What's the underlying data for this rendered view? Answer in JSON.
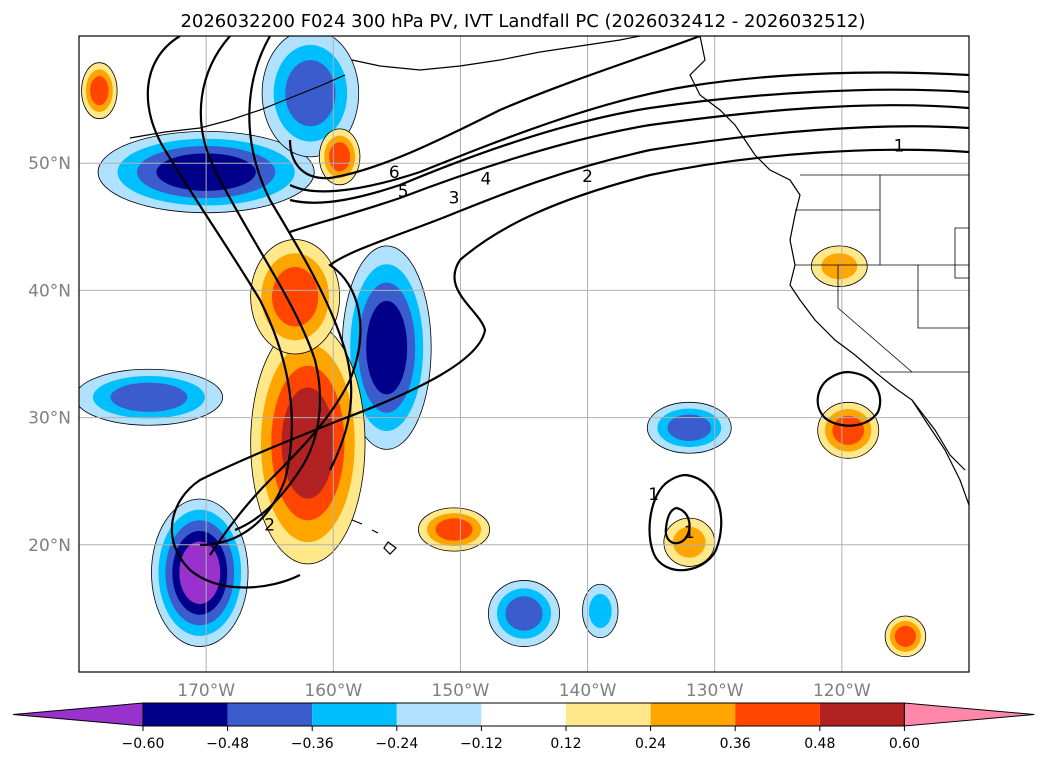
{
  "chart_data": {
    "type": "map-contour",
    "title": "2026032200 F024 300 hPa PV, IVT Landfall PC (2026032412 - 2026032512)",
    "lon_range": [
      -180,
      -110
    ],
    "lat_range": [
      10,
      60
    ],
    "x_ticks": [
      {
        "lon": -170,
        "label": "170°W"
      },
      {
        "lon": -160,
        "label": "160°W"
      },
      {
        "lon": -150,
        "label": "150°W"
      },
      {
        "lon": -140,
        "label": "140°W"
      },
      {
        "lon": -130,
        "label": "130°W"
      },
      {
        "lon": -120,
        "label": "120°W"
      }
    ],
    "y_ticks": [
      {
        "lat": 20,
        "label": "20°N"
      },
      {
        "lat": 30,
        "label": "30°N"
      },
      {
        "lat": 40,
        "label": "40°N"
      },
      {
        "lat": 50,
        "label": "50°N"
      }
    ],
    "colorbar": {
      "levels": [
        "-0.60",
        "-0.48",
        "-0.36",
        "-0.24",
        "-0.12",
        "0.12",
        "0.24",
        "0.36",
        "0.48",
        "0.60"
      ],
      "level_values": [
        -0.6,
        -0.48,
        -0.36,
        -0.24,
        -0.12,
        0.12,
        0.24,
        0.36,
        0.48,
        0.6
      ],
      "colors": [
        "#9932cc",
        "#00008b",
        "#3a5ccc",
        "#00bfff",
        "#b0e2ff",
        "#ffffff",
        "#ffe88a",
        "#ffa500",
        "#ff4500",
        "#b22222",
        "#ff88aa"
      ],
      "extend": "both"
    },
    "pv_contour_levels": [
      {
        "value": 1,
        "label": "1"
      },
      {
        "value": 2,
        "label": "2"
      },
      {
        "value": 3,
        "label": "3"
      },
      {
        "value": 4,
        "label": "4"
      },
      {
        "value": 5,
        "label": "5"
      },
      {
        "value": 6,
        "label": "6"
      }
    ],
    "pv_contour_labels": [
      {
        "text": "1",
        "lon": -115.5,
        "lat": 51.4
      },
      {
        "text": "2",
        "lon": -140.0,
        "lat": 49.0
      },
      {
        "text": "3",
        "lon": -150.5,
        "lat": 47.3
      },
      {
        "text": "4",
        "lon": -148.0,
        "lat": 48.8
      },
      {
        "text": "5",
        "lon": -154.5,
        "lat": 47.8
      },
      {
        "text": "6",
        "lon": -155.2,
        "lat": 49.3
      },
      {
        "text": "2",
        "lon": -165.0,
        "lat": 21.6
      },
      {
        "text": "1",
        "lon": -134.8,
        "lat": 24.0
      },
      {
        "text": "1",
        "lon": -132.0,
        "lat": 21.0
      }
    ],
    "pc_field_blobs": [
      {
        "lon": -170,
        "lat": 49.3,
        "rx": 8.5,
        "ry": 3.2,
        "level": "-0.48"
      },
      {
        "lon": -161.8,
        "lat": 55.5,
        "rx": 3.8,
        "ry": 5.0,
        "level": "-0.36"
      },
      {
        "lon": -155.8,
        "lat": 35.5,
        "rx": 3.5,
        "ry": 8.0,
        "level": "-0.48"
      },
      {
        "lon": -170.5,
        "lat": 17.8,
        "rx": 3.8,
        "ry": 5.8,
        "level": "-0.60"
      },
      {
        "lon": -174.5,
        "lat": 31.6,
        "rx": 5.8,
        "ry": 2.2,
        "level": "-0.36"
      },
      {
        "lon": -132.0,
        "lat": 29.2,
        "rx": 3.3,
        "ry": 2.0,
        "level": "-0.36"
      },
      {
        "lon": -145.0,
        "lat": 14.6,
        "rx": 2.8,
        "ry": 2.6,
        "level": "-0.36"
      },
      {
        "lon": -139.0,
        "lat": 14.8,
        "rx": 1.4,
        "ry": 2.1,
        "level": "-0.24"
      },
      {
        "lon": -162.0,
        "lat": 28.0,
        "rx": 4.5,
        "ry": 9.5,
        "level": "0.48"
      },
      {
        "lon": -163.0,
        "lat": 39.5,
        "rx": 3.5,
        "ry": 4.5,
        "level": "0.36"
      },
      {
        "lon": -159.5,
        "lat": 50.5,
        "rx": 1.6,
        "ry": 2.2,
        "level": "0.36"
      },
      {
        "lon": -120.2,
        "lat": 41.9,
        "rx": 2.2,
        "ry": 1.6,
        "level": "0.24"
      },
      {
        "lon": -119.5,
        "lat": 29.0,
        "rx": 2.4,
        "ry": 2.2,
        "level": "0.36"
      },
      {
        "lon": -178.4,
        "lat": 55.7,
        "rx": 1.4,
        "ry": 2.2,
        "level": "0.36"
      },
      {
        "lon": -150.5,
        "lat": 21.2,
        "rx": 2.8,
        "ry": 1.7,
        "level": "0.36"
      },
      {
        "lon": -132.0,
        "lat": 20.2,
        "rx": 2.0,
        "ry": 1.9,
        "level": "0.24"
      },
      {
        "lon": -115.0,
        "lat": 12.8,
        "rx": 1.6,
        "ry": 1.6,
        "level": "0.36"
      }
    ]
  }
}
